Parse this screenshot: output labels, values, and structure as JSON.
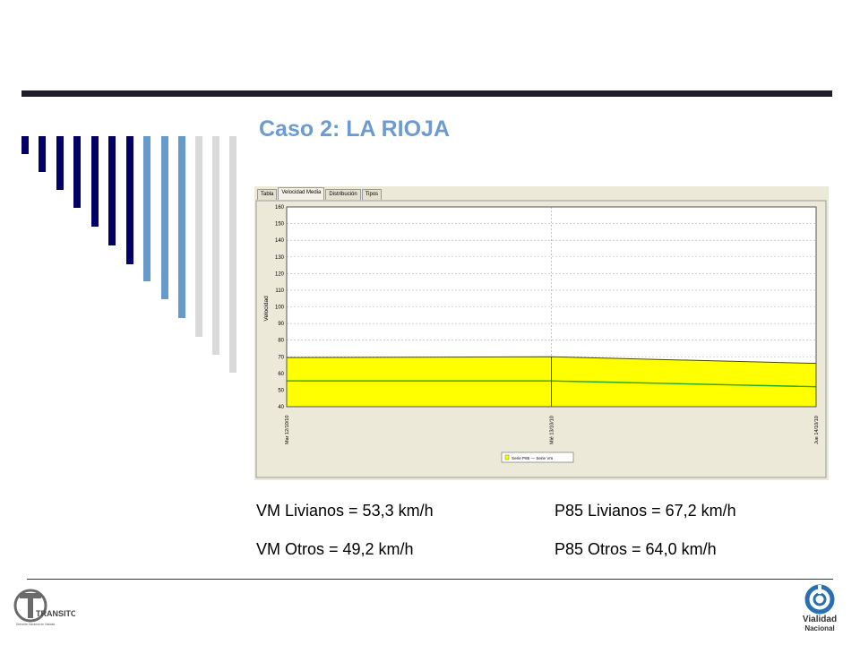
{
  "slide": {
    "title": "Caso 2: LA RIOJA"
  },
  "chart_window": {
    "tabs": [
      {
        "label": "Tabla",
        "active": false
      },
      {
        "label": "Velocidad Media",
        "active": true
      },
      {
        "label": "Distribución",
        "active": false
      },
      {
        "label": "Tipos",
        "active": false
      }
    ],
    "legend": "Serie P85  —  Serie Vm"
  },
  "chart_data": {
    "type": "area",
    "ylabel": "Velocidad",
    "ylim": [
      40,
      160
    ],
    "yticks": [
      40,
      50,
      60,
      70,
      80,
      90,
      100,
      110,
      120,
      130,
      140,
      150,
      160
    ],
    "x_labels": [
      "Mar 12/10/10",
      "Mié 13/10/10",
      "Jue 14/10/10"
    ],
    "grid": true,
    "series": [
      {
        "name": "Serie P85",
        "kind": "area",
        "color": "#ffff00",
        "x": [
          0,
          0.5,
          1
        ],
        "values": [
          69.5,
          70.0,
          66.0
        ]
      },
      {
        "name": "Serie Vm",
        "kind": "line",
        "color": "#22aa22",
        "x": [
          0,
          0.5,
          1
        ],
        "values": [
          55.5,
          55.5,
          52.0
        ]
      }
    ]
  },
  "stats": {
    "vm_livianos": "VM Livianos  = 53,3 km/h",
    "vm_otros": "VM Otros      = 49,2 km/h",
    "p85_livianos": "P85 Livianos  = 67,2 km/h",
    "p85_otros": "P85 Otros      = 64,0 km/h"
  },
  "logos": {
    "left_text": "TRANSITO",
    "left_subtext": "Dirección Nacional de Vialidad",
    "right_text": "Vialidad",
    "right_subtext": "Nacional"
  },
  "colors": {
    "title": "#6b9bd1",
    "dark_bar": "#000066",
    "mid_bar": "#6699cc",
    "light_bar": "#d9d9d9",
    "area_fill": "#ffff00",
    "line": "#22aa22"
  }
}
